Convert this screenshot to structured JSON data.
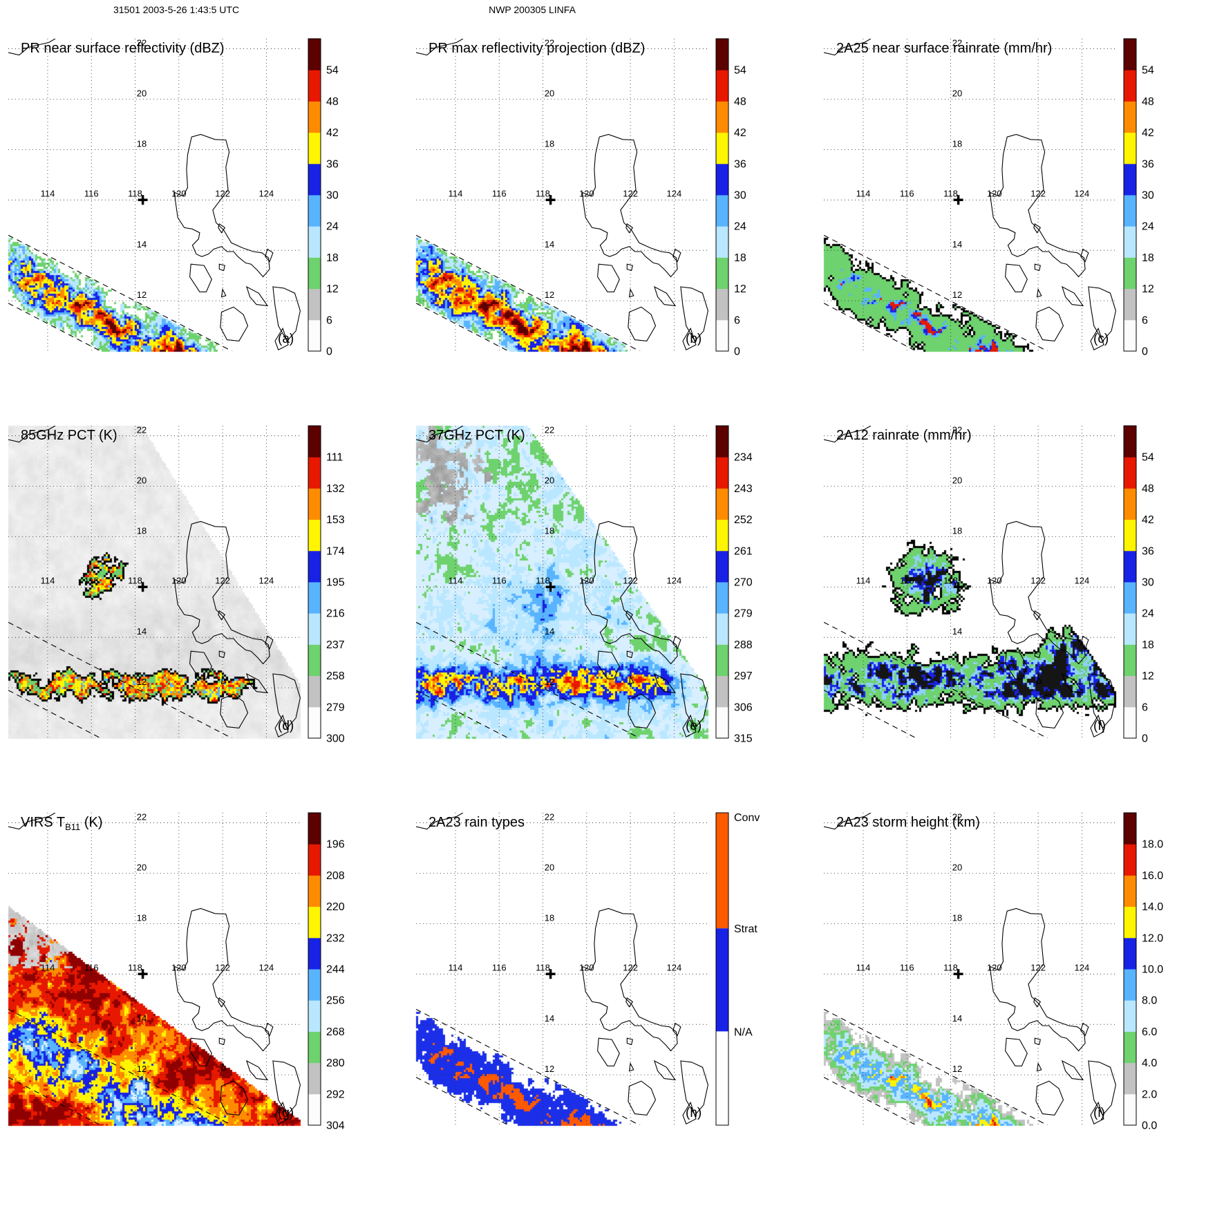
{
  "header": {
    "left_title": "31501 2003-5-26 1:43:5 UTC",
    "center_title": "NWP 200305 LINFA"
  },
  "map": {
    "lon_range": [
      112.2,
      125.6
    ],
    "lat_range": [
      10.0,
      22.4
    ],
    "lon_ticks": [
      114,
      116,
      118,
      120,
      122,
      124
    ],
    "lat_ticks": [
      12,
      14,
      16,
      18,
      20,
      22
    ],
    "lon_tick_labels": [
      "114",
      "116",
      "118",
      "120",
      "122",
      "124"
    ],
    "lat_tick_labels": [
      "12",
      "14",
      "18",
      "20",
      "22"
    ],
    "storm_center_marker": {
      "lon": 118.35,
      "lat": 16.0,
      "symbol": "+"
    }
  },
  "palettes": {
    "standard10": [
      "#fcfcfc",
      "#c2c2c2",
      "#6ed26e",
      "#b9e7ff",
      "#59b4ff",
      "#1822e6",
      "#fff500",
      "#ff8c00",
      "#e81800",
      "#5c0000"
    ]
  },
  "chart_data": {
    "type": "heatmap",
    "subtype": "satellite-swath-map-grid",
    "extent": {
      "lon": [
        112.2,
        125.6
      ],
      "lat": [
        10.0,
        22.4
      ]
    },
    "grid": "dotted graticule every 2 degrees",
    "panels": [
      {
        "id": "a",
        "letter": "(a)",
        "title": "PR near surface reflectivity (dBZ)",
        "units": "dBZ",
        "colorbar": {
          "palette": "standard10",
          "ticks_bottom_to_top": [
            "0",
            "6",
            "12",
            "18",
            "24",
            "30",
            "36",
            "42",
            "48",
            "54"
          ]
        },
        "field": {
          "kind": "pr_refl",
          "seed": 1
        }
      },
      {
        "id": "b",
        "letter": "(b)",
        "title": "PR max reflectivity projection (dBZ)",
        "units": "dBZ",
        "colorbar": {
          "palette": "standard10",
          "ticks_bottom_to_top": [
            "0",
            "6",
            "12",
            "18",
            "24",
            "30",
            "36",
            "42",
            "48",
            "54"
          ]
        },
        "field": {
          "kind": "pr_max",
          "seed": 1
        }
      },
      {
        "id": "c",
        "letter": "(c)",
        "title": "2A25 near surface rainrate (mm/hr)",
        "units": "mm/hr",
        "colorbar": {
          "palette": "standard10",
          "ticks_bottom_to_top": [
            "0",
            "6",
            "12",
            "18",
            "24",
            "30",
            "36",
            "42",
            "48",
            "54"
          ]
        },
        "field": {
          "kind": "pr_rain",
          "seed": 1
        }
      },
      {
        "id": "d",
        "letter": "(d)",
        "title": "85GHz PCT (K)",
        "units": "K",
        "colorbar": {
          "palette": "standard10",
          "ticks_bottom_to_top": [
            "300",
            "279",
            "258",
            "237",
            "216",
            "195",
            "174",
            "153",
            "132",
            "111"
          ]
        },
        "field": {
          "kind": "tmi85",
          "seed": 4
        }
      },
      {
        "id": "e",
        "letter": "(e)",
        "title": "37GHz PCT (K)",
        "units": "K",
        "colorbar": {
          "palette": "standard10",
          "ticks_bottom_to_top": [
            "315",
            "306",
            "297",
            "288",
            "279",
            "270",
            "261",
            "252",
            "243",
            "234"
          ]
        },
        "field": {
          "kind": "tmi37",
          "seed": 5
        }
      },
      {
        "id": "f",
        "letter": "(f)",
        "title": "2A12 rainrate (mm/hr)",
        "units": "mm/hr",
        "colorbar": {
          "palette": "standard10",
          "ticks_bottom_to_top": [
            "0",
            "6",
            "12",
            "18",
            "24",
            "30",
            "36",
            "42",
            "48",
            "54"
          ]
        },
        "field": {
          "kind": "tmi_rain",
          "seed": 6
        }
      },
      {
        "id": "g",
        "letter": "(g)",
        "title": "VIRS T",
        "title_sub": "B11",
        "title_suffix": " (K)",
        "units": "K",
        "colorbar": {
          "palette": "standard10",
          "ticks_bottom_to_top": [
            "304",
            "292",
            "280",
            "268",
            "256",
            "244",
            "232",
            "220",
            "208",
            "196"
          ]
        },
        "field": {
          "kind": "virs",
          "seed": 7
        }
      },
      {
        "id": "h",
        "letter": "(h)",
        "title": "2A23 rain types",
        "colorbar": {
          "segments_top_to_bottom": [
            {
              "label": "Conv",
              "color": "#ff5a00",
              "frac": 0.37
            },
            {
              "label": "Strat",
              "color": "#1822e6",
              "frac": 0.33
            },
            {
              "label": "N/A",
              "color": "#ffffff",
              "frac": 0.3
            }
          ]
        },
        "field": {
          "kind": "raintype",
          "seed": 1
        }
      },
      {
        "id": "i",
        "letter": "(i)",
        "title": "2A23 storm height (km)",
        "units": "km",
        "colorbar": {
          "palette": "standard10",
          "ticks_bottom_to_top": [
            "0.0",
            "2.0",
            "4.0",
            "6.0",
            "8.0",
            "10.0",
            "12.0",
            "14.0",
            "16.0",
            "18.0"
          ]
        },
        "field": {
          "kind": "height",
          "seed": 1
        }
      }
    ]
  }
}
